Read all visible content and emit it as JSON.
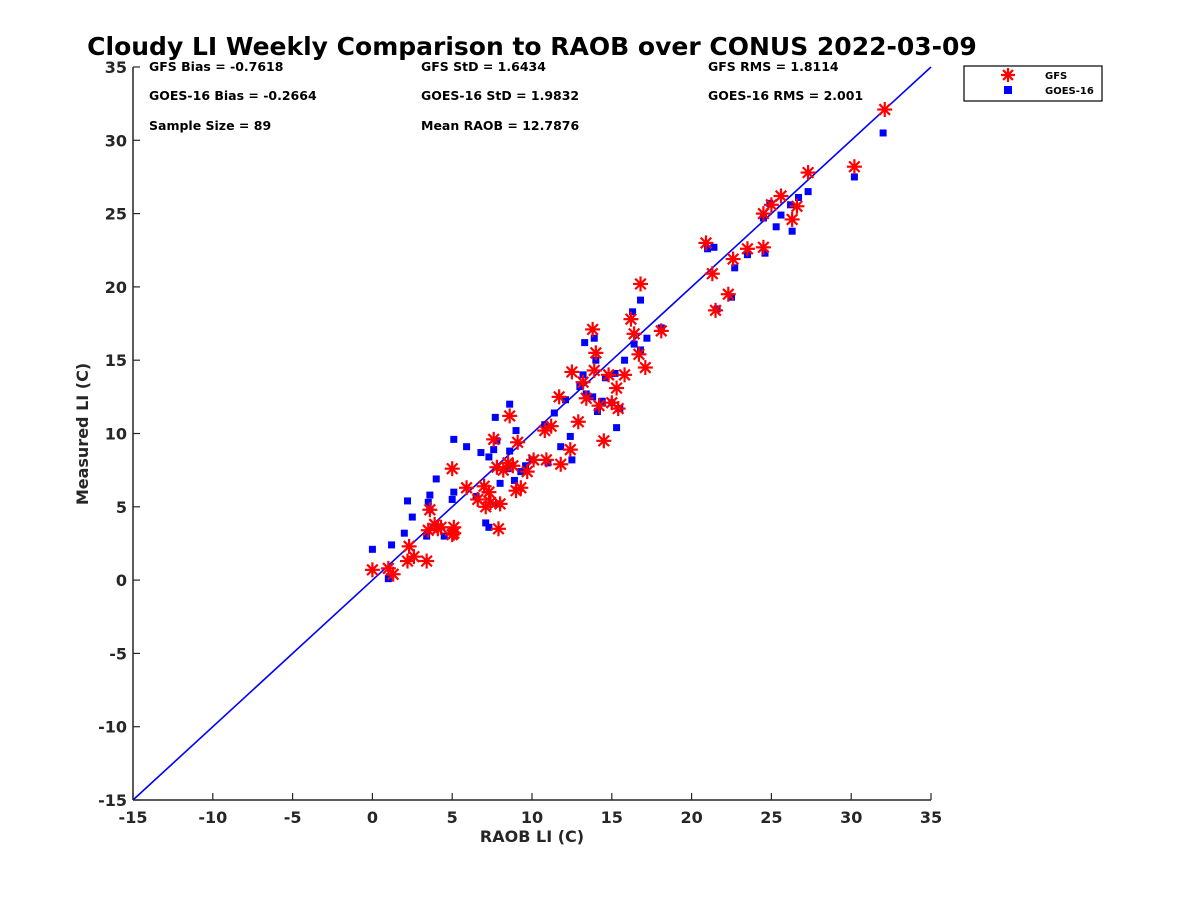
{
  "chart_data": {
    "type": "scatter",
    "title": "Cloudy LI Weekly Comparison to RAOB over CONUS 2022-03-09",
    "xlabel": "RAOB LI (C)",
    "ylabel": "Measured LI (C)",
    "xlim": [
      -15,
      35
    ],
    "ylim": [
      -15,
      35
    ],
    "xticks": [
      "-15",
      "-10",
      "-5",
      "0",
      "5",
      "10",
      "15",
      "20",
      "25",
      "30",
      "35"
    ],
    "yticks": [
      "-15",
      "-10",
      "-5",
      "0",
      "5",
      "10",
      "15",
      "20",
      "25",
      "30",
      "35"
    ],
    "grid": false,
    "legend_position": "outside top-right",
    "reference_line": {
      "type": "one-to-one",
      "color": "#0000ff"
    },
    "stats": {
      "gfs_bias": "GFS Bias = -0.7618",
      "goes_bias": "GOES-16 Bias = -0.2664",
      "sample_size": "Sample Size = 89",
      "gfs_std": "GFS StD = 1.6434",
      "goes_std": "GOES-16 StD = 1.9832",
      "mean_raob": "Mean RAOB = 12.7876",
      "gfs_rms": "GFS RMS = 1.8114",
      "goes_rms": "GOES-16 RMS = 2.001"
    },
    "series": [
      {
        "name": "GFS",
        "color": "#ff0000",
        "marker": "asterisk",
        "points": [
          [
            0.0,
            0.7
          ],
          [
            1.0,
            0.8
          ],
          [
            1.3,
            0.4
          ],
          [
            2.2,
            1.3
          ],
          [
            2.3,
            2.3
          ],
          [
            2.6,
            1.6
          ],
          [
            3.4,
            1.3
          ],
          [
            3.5,
            3.4
          ],
          [
            3.6,
            4.8
          ],
          [
            3.9,
            3.8
          ],
          [
            4.1,
            3.5
          ],
          [
            4.3,
            3.6
          ],
          [
            5.0,
            3.1
          ],
          [
            5.1,
            3.6
          ],
          [
            5.1,
            3.2
          ],
          [
            5.0,
            7.6
          ],
          [
            5.9,
            6.3
          ],
          [
            6.6,
            5.5
          ],
          [
            7.0,
            6.4
          ],
          [
            7.1,
            5.0
          ],
          [
            7.3,
            6.0
          ],
          [
            7.4,
            5.3
          ],
          [
            7.6,
            9.6
          ],
          [
            7.8,
            7.7
          ],
          [
            7.9,
            3.5
          ],
          [
            8.0,
            5.2
          ],
          [
            8.2,
            7.5
          ],
          [
            8.5,
            8.0
          ],
          [
            8.6,
            11.2
          ],
          [
            8.8,
            7.8
          ],
          [
            9.0,
            6.1
          ],
          [
            9.1,
            9.4
          ],
          [
            9.3,
            6.3
          ],
          [
            9.7,
            7.4
          ],
          [
            10.1,
            8.2
          ],
          [
            10.8,
            10.2
          ],
          [
            10.9,
            8.2
          ],
          [
            11.2,
            10.5
          ],
          [
            11.7,
            12.5
          ],
          [
            11.8,
            7.9
          ],
          [
            12.4,
            8.9
          ],
          [
            12.5,
            14.2
          ],
          [
            12.9,
            10.8
          ],
          [
            13.2,
            13.5
          ],
          [
            13.4,
            12.4
          ],
          [
            13.8,
            17.1
          ],
          [
            13.9,
            14.3
          ],
          [
            14.0,
            15.5
          ],
          [
            14.2,
            11.9
          ],
          [
            14.5,
            9.5
          ],
          [
            14.8,
            14.0
          ],
          [
            15.0,
            12.1
          ],
          [
            15.3,
            13.1
          ],
          [
            15.4,
            11.7
          ],
          [
            15.8,
            14.0
          ],
          [
            16.2,
            17.8
          ],
          [
            16.4,
            16.8
          ],
          [
            16.8,
            20.2
          ],
          [
            16.7,
            15.4
          ],
          [
            17.1,
            14.5
          ],
          [
            18.1,
            17.0
          ],
          [
            20.9,
            23.0
          ],
          [
            21.3,
            20.9
          ],
          [
            21.5,
            18.4
          ],
          [
            22.3,
            19.5
          ],
          [
            22.6,
            21.9
          ],
          [
            23.5,
            22.6
          ],
          [
            24.5,
            22.7
          ],
          [
            24.5,
            25.0
          ],
          [
            25.0,
            25.6
          ],
          [
            25.6,
            26.2
          ],
          [
            26.3,
            24.6
          ],
          [
            26.6,
            25.5
          ],
          [
            27.3,
            27.8
          ],
          [
            30.2,
            28.2
          ],
          [
            32.1,
            32.1
          ]
        ]
      },
      {
        "name": "GOES-16",
        "color": "#0000ff",
        "marker": "square",
        "points": [
          [
            0.0,
            2.1
          ],
          [
            1.0,
            0.1
          ],
          [
            1.2,
            2.4
          ],
          [
            2.0,
            3.2
          ],
          [
            2.2,
            5.4
          ],
          [
            2.5,
            4.3
          ],
          [
            3.4,
            3.0
          ],
          [
            3.5,
            5.3
          ],
          [
            3.6,
            5.8
          ],
          [
            3.6,
            4.8
          ],
          [
            4.0,
            6.9
          ],
          [
            4.5,
            3.0
          ],
          [
            5.0,
            5.5
          ],
          [
            5.1,
            9.6
          ],
          [
            5.1,
            6.0
          ],
          [
            5.9,
            9.1
          ],
          [
            6.5,
            5.7
          ],
          [
            6.8,
            8.7
          ],
          [
            7.1,
            3.9
          ],
          [
            7.3,
            3.6
          ],
          [
            7.3,
            8.4
          ],
          [
            7.6,
            8.9
          ],
          [
            7.7,
            11.1
          ],
          [
            7.8,
            9.5
          ],
          [
            7.9,
            5.2
          ],
          [
            8.0,
            6.6
          ],
          [
            8.5,
            7.6
          ],
          [
            8.6,
            8.8
          ],
          [
            8.6,
            12.0
          ],
          [
            8.9,
            6.8
          ],
          [
            9.0,
            10.2
          ],
          [
            9.3,
            7.4
          ],
          [
            9.6,
            7.8
          ],
          [
            10.0,
            8.2
          ],
          [
            10.8,
            10.6
          ],
          [
            11.0,
            8.0
          ],
          [
            11.4,
            11.4
          ],
          [
            11.8,
            9.1
          ],
          [
            12.1,
            12.3
          ],
          [
            12.4,
            9.8
          ],
          [
            12.5,
            8.2
          ],
          [
            13.0,
            13.2
          ],
          [
            13.2,
            14.0
          ],
          [
            13.3,
            16.2
          ],
          [
            13.4,
            12.7
          ],
          [
            13.8,
            12.5
          ],
          [
            13.9,
            16.5
          ],
          [
            14.0,
            15.0
          ],
          [
            14.1,
            11.5
          ],
          [
            14.4,
            12.2
          ],
          [
            14.6,
            13.8
          ],
          [
            15.0,
            12.1
          ],
          [
            15.2,
            14.1
          ],
          [
            15.3,
            10.4
          ],
          [
            15.5,
            11.7
          ],
          [
            15.8,
            15.0
          ],
          [
            16.3,
            18.3
          ],
          [
            16.4,
            16.1
          ],
          [
            16.8,
            19.1
          ],
          [
            16.8,
            15.7
          ],
          [
            17.2,
            16.5
          ],
          [
            18.1,
            17.2
          ],
          [
            21.0,
            22.6
          ],
          [
            21.4,
            22.7
          ],
          [
            21.6,
            18.5
          ],
          [
            22.5,
            19.3
          ],
          [
            22.7,
            21.3
          ],
          [
            23.5,
            22.2
          ],
          [
            24.5,
            24.7
          ],
          [
            24.6,
            22.3
          ],
          [
            24.9,
            25.7
          ],
          [
            25.3,
            24.1
          ],
          [
            25.6,
            24.9
          ],
          [
            26.2,
            25.6
          ],
          [
            26.3,
            23.8
          ],
          [
            26.7,
            26.1
          ],
          [
            27.3,
            26.5
          ],
          [
            30.2,
            27.5
          ],
          [
            32.0,
            30.5
          ]
        ]
      }
    ]
  }
}
